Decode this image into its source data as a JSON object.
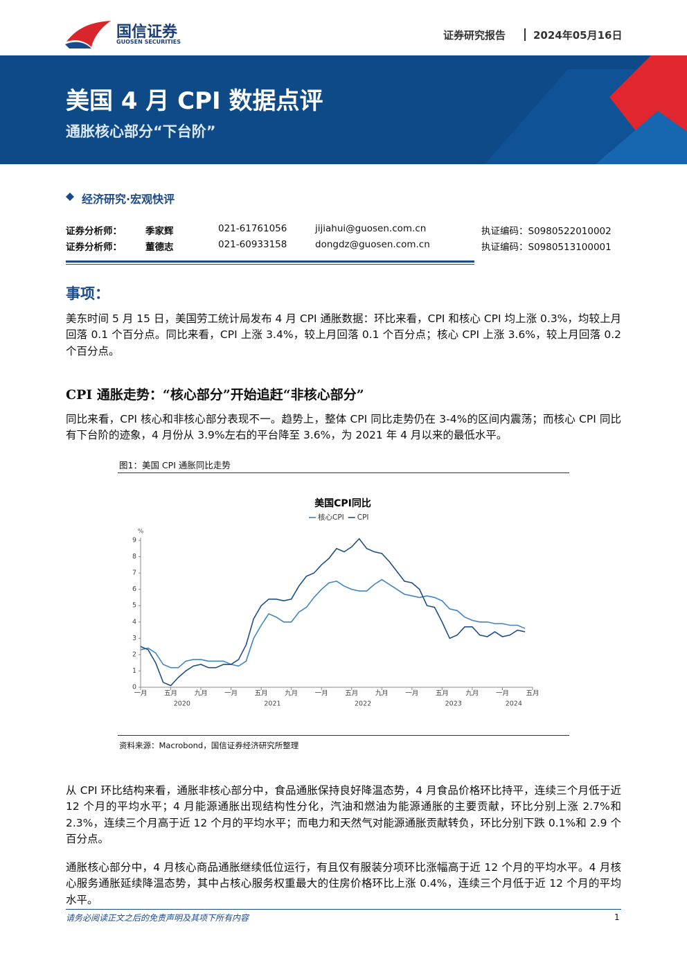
{
  "header": {
    "brand": "国信证券",
    "brand_en": "GUOSEN SECURITIES",
    "report_type": "证券研究报告",
    "date": "2024年05月16日"
  },
  "banner": {
    "title": "美国 4 月 CPI 数据点评",
    "subtitle": "通胀核心部分“下台阶”"
  },
  "category": "经济研究·宏观快评",
  "analysts": [
    {
      "role": "证券分析师：",
      "name": "季家辉",
      "phone": "021-61761056",
      "email": "jijiahui@guosen.com.cn",
      "cert": "执证编码：S0980522010002"
    },
    {
      "role": "证券分析师：",
      "name": "董德志",
      "phone": "021-60933158",
      "email": "dongdz@guosen.com.cn",
      "cert": "执证编码：S0980513100001"
    }
  ],
  "sections": [
    {
      "heading": "事项：",
      "paragraphs": [
        "美东时间 5 月 15 日，美国劳工统计局发布 4 月 CPI 通胀数据：环比来看，CPI 和核心 CPI 均上涨 0.3%，均较上月回落 0.1 个百分点。同比来看，CPI 上涨 3.4%，较上月回落 0.1 个百分点；核心 CPI 上涨 3.6%，较上月回落 0.2 个百分点。"
      ]
    },
    {
      "heading": "CPI 通胀走势：“核心部分”开始追赶“非核心部分”",
      "paragraphs": [
        "同比来看，CPI 核心和非核心部分表现不一。趋势上，整体 CPI 同比走势仍在 3-4%的区间内震荡；而核心 CPI 同比有下台阶的迹象，4 月份从 3.9%左右的平台降至 3.6%，为 2021 年 4 月以来的最低水平。"
      ]
    }
  ],
  "figure": {
    "caption": "图1：美国 CPI 通胀同比走势",
    "source": "资料来源：Macrobond，国信证券经济研究所整理"
  },
  "chart_data": {
    "type": "line",
    "title": "美国CPI同比",
    "ylabel": "%",
    "x": [
      "2020-01",
      "2020-02",
      "2020-03",
      "2020-04",
      "2020-05",
      "2020-06",
      "2020-07",
      "2020-08",
      "2020-09",
      "2020-10",
      "2020-11",
      "2020-12",
      "2021-01",
      "2021-02",
      "2021-03",
      "2021-04",
      "2021-05",
      "2021-06",
      "2021-07",
      "2021-08",
      "2021-09",
      "2021-10",
      "2021-11",
      "2021-12",
      "2022-01",
      "2022-02",
      "2022-03",
      "2022-04",
      "2022-05",
      "2022-06",
      "2022-07",
      "2022-08",
      "2022-09",
      "2022-10",
      "2022-11",
      "2022-12",
      "2023-01",
      "2023-02",
      "2023-03",
      "2023-04",
      "2023-05",
      "2023-06",
      "2023-07",
      "2023-08",
      "2023-09",
      "2023-10",
      "2023-11",
      "2023-12",
      "2024-01",
      "2024-02",
      "2024-03",
      "2024-04"
    ],
    "series": [
      {
        "name": "核心CPI",
        "color": "#3f84c4",
        "values": [
          2.3,
          2.4,
          2.1,
          1.4,
          1.2,
          1.2,
          1.6,
          1.7,
          1.7,
          1.6,
          1.6,
          1.6,
          1.4,
          1.3,
          1.6,
          3.0,
          3.8,
          4.5,
          4.3,
          4.0,
          4.0,
          4.6,
          4.9,
          5.5,
          6.0,
          6.4,
          6.5,
          6.2,
          6.0,
          5.9,
          5.9,
          6.3,
          6.6,
          6.3,
          6.0,
          5.7,
          5.6,
          5.5,
          5.6,
          5.5,
          5.3,
          4.8,
          4.7,
          4.3,
          4.1,
          4.0,
          4.0,
          3.9,
          3.9,
          3.8,
          3.8,
          3.6
        ]
      },
      {
        "name": "CPI",
        "color": "#1d4f86",
        "values": [
          2.5,
          2.3,
          1.5,
          0.3,
          0.1,
          0.6,
          1.0,
          1.3,
          1.4,
          1.2,
          1.2,
          1.4,
          1.4,
          1.7,
          2.6,
          4.2,
          5.0,
          5.4,
          5.4,
          5.3,
          5.4,
          6.2,
          6.8,
          7.0,
          7.5,
          7.9,
          8.5,
          8.3,
          8.6,
          9.1,
          8.5,
          8.3,
          8.2,
          7.7,
          7.1,
          6.5,
          6.4,
          6.0,
          5.0,
          4.9,
          4.0,
          3.0,
          3.2,
          3.7,
          3.7,
          3.2,
          3.1,
          3.4,
          3.1,
          3.2,
          3.5,
          3.4
        ]
      }
    ],
    "xlim": [
      "2020-01",
      "2024-05"
    ],
    "xticks": [
      {
        "value": "2020-01",
        "label": "一月"
      },
      {
        "value": "2020-05",
        "label": "五月"
      },
      {
        "value": "2020-09",
        "label": "九月"
      },
      {
        "value": "2021-01",
        "label": "一月"
      },
      {
        "value": "2021-05",
        "label": "五月"
      },
      {
        "value": "2021-09",
        "label": "九月"
      },
      {
        "value": "2022-01",
        "label": "一月"
      },
      {
        "value": "2022-05",
        "label": "五月"
      },
      {
        "value": "2022-09",
        "label": "九月"
      },
      {
        "value": "2023-01",
        "label": "一月"
      },
      {
        "value": "2023-05",
        "label": "五月"
      },
      {
        "value": "2023-09",
        "label": "九月"
      },
      {
        "value": "2024-01",
        "label": "一月"
      },
      {
        "value": "2024-05",
        "label": "五月"
      }
    ],
    "x_groups": [
      "2020",
      "2021",
      "2022",
      "2023",
      "2024"
    ],
    "ylim": [
      0,
      9
    ],
    "yticks": [
      0,
      1,
      2,
      3,
      4,
      5,
      6,
      7,
      8,
      9
    ],
    "grid": false
  },
  "body_after": [
    "从 CPI 环比结构来看，通胀非核心部分中，食品通胀保持良好降温态势，4 月食品价格环比持平，连续三个月低于近 12 个月的平均水平；4 月能源通胀出现结构性分化，汽油和燃油为能源通胀的主要贡献，环比分别上涨 2.7%和 2.3%，连续三个月高于近 12 个月的平均水平；而电力和天然气对能源通胀贡献转负，环比分别下跌 0.1%和 2.9 个百分点。",
    "通胀核心部分中，4 月核心商品通胀继续低位运行，有且仅有服装分项环比涨幅高于近 12 个月的平均水平。4 月核心服务通胀延续降温态势，其中占核心服务权重最大的住房价格环比上涨 0.4%，连续三个月低于近 12 个月的平均水平。"
  ],
  "footer": {
    "disclaimer": "请务必阅读正文之后的免责声明及其项下所有内容",
    "page": 1
  }
}
